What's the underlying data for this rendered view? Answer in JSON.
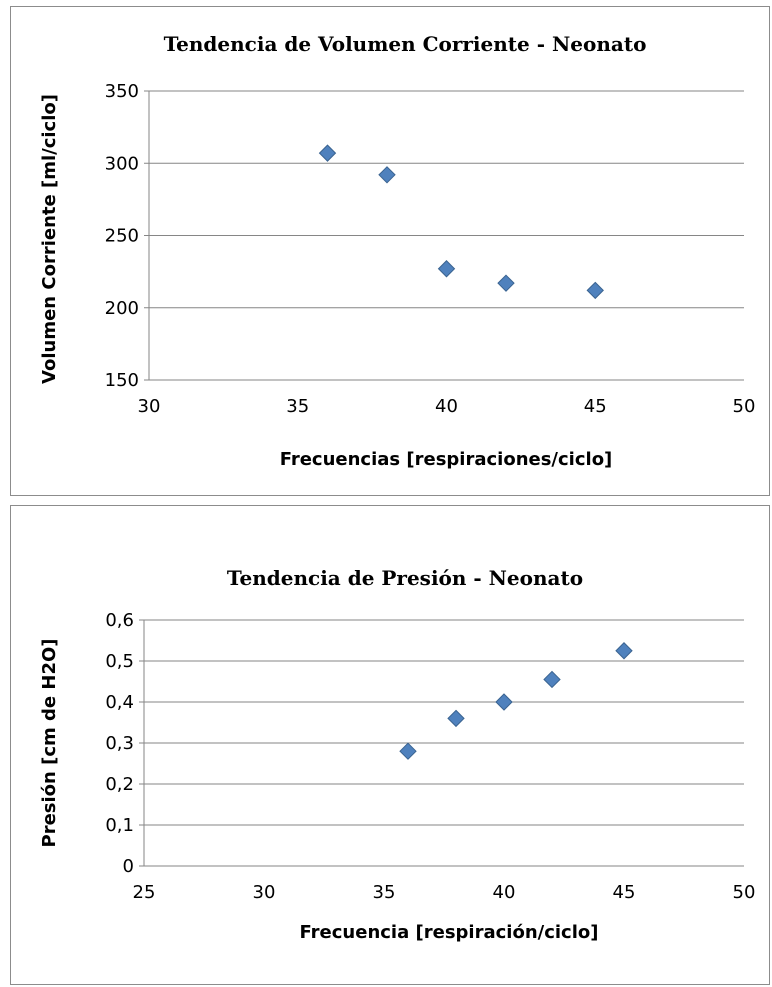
{
  "chart_data": [
    {
      "type": "scatter",
      "title": "Tendencia de Volumen Corriente - Neonato",
      "xlabel": "Frecuencias [respiraciones/ciclo]",
      "ylabel": "Volumen Corriente [ml/ciclo]",
      "xlim": [
        30,
        50
      ],
      "ylim": [
        150,
        350
      ],
      "xticks": [
        30,
        35,
        40,
        45,
        50
      ],
      "yticks": [
        150,
        200,
        250,
        300,
        350
      ],
      "xtick_labels": [
        "30",
        "35",
        "40",
        "45",
        "50"
      ],
      "ytick_labels": [
        "150",
        "200",
        "250",
        "300",
        "350"
      ],
      "grid": "horizontal",
      "marker_color": "#4f81bd",
      "x": [
        36,
        38,
        40,
        42,
        45
      ],
      "y": [
        307,
        292,
        227,
        217,
        212
      ]
    },
    {
      "type": "scatter",
      "title": "Tendencia de Presión - Neonato",
      "xlabel": "Frecuencia [respiración/ciclo]",
      "ylabel": "Presión [cm de H2O]",
      "xlim": [
        25,
        50
      ],
      "ylim": [
        0,
        0.6
      ],
      "xticks": [
        25,
        30,
        35,
        40,
        45,
        50
      ],
      "yticks": [
        0,
        0.1,
        0.2,
        0.3,
        0.4,
        0.5,
        0.6
      ],
      "xtick_labels": [
        "25",
        "30",
        "35",
        "40",
        "45",
        "50"
      ],
      "ytick_labels": [
        "0",
        "0,1",
        "0,2",
        "0,3",
        "0,4",
        "0,5",
        "0,6"
      ],
      "grid": "horizontal",
      "marker_color": "#4f81bd",
      "x": [
        36,
        38,
        40,
        42,
        45
      ],
      "y": [
        0.28,
        0.36,
        0.4,
        0.455,
        0.525
      ]
    }
  ]
}
